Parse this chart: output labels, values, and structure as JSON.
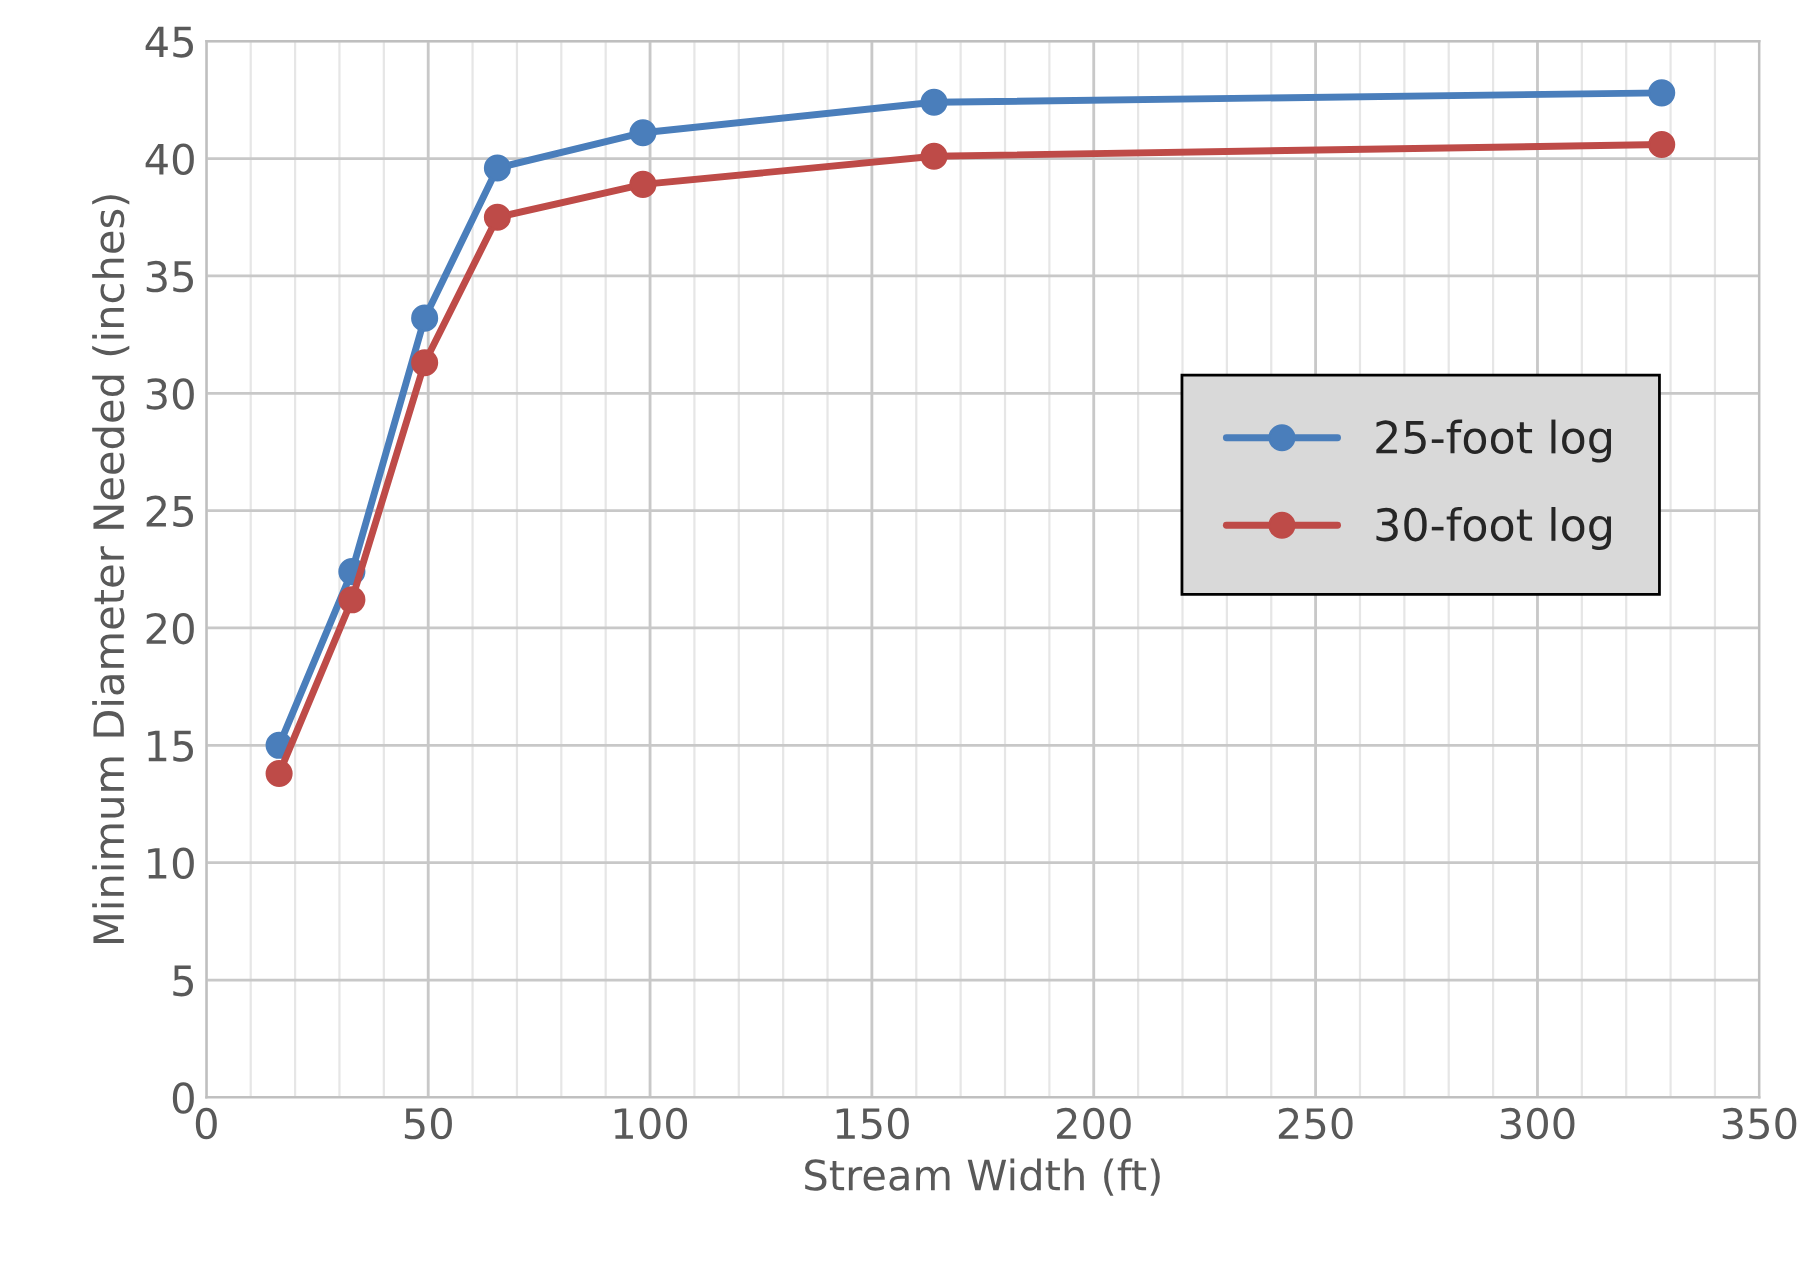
{
  "chart_data": {
    "type": "line",
    "xlabel": "Stream Width (ft)",
    "ylabel": "Minimum Diameter Needed (inches)",
    "x": [
      16.4,
      32.8,
      49.2,
      65.6,
      98.4,
      164,
      328
    ],
    "series": [
      {
        "name": "25-foot log",
        "color": "#4a7ebb",
        "values": [
          15.0,
          22.4,
          33.2,
          39.6,
          41.1,
          42.4,
          42.8
        ]
      },
      {
        "name": "30-foot log",
        "color": "#be4b48",
        "values": [
          13.8,
          21.2,
          31.3,
          37.5,
          38.9,
          40.1,
          40.6
        ]
      }
    ],
    "xlim": [
      0,
      350
    ],
    "xticks": [
      0,
      50,
      100,
      150,
      200,
      250,
      300,
      350
    ],
    "ylim": [
      0,
      45
    ],
    "yticks": [
      0,
      5,
      10,
      15,
      20,
      25,
      30,
      35,
      40,
      45
    ],
    "grid": true,
    "legend": "right",
    "marker": "circle",
    "line_style": "solid"
  }
}
